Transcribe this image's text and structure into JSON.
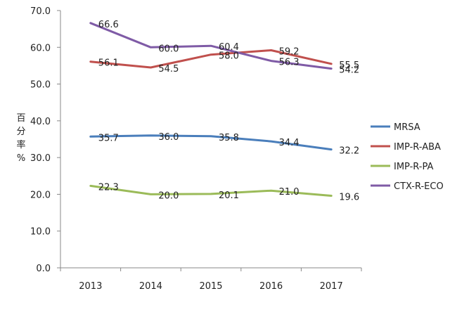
{
  "chart_data": {
    "type": "line",
    "ylabel": [
      "百",
      "分",
      "率",
      "%"
    ],
    "categories": [
      "2013",
      "2014",
      "2015",
      "2016",
      "2017"
    ],
    "ylim": [
      0,
      70
    ],
    "yticks": [
      "0.0",
      "10.0",
      "20.0",
      "30.0",
      "40.0",
      "50.0",
      "60.0",
      "70.0"
    ],
    "grid": false,
    "legend_position": "right",
    "series": [
      {
        "name": "MRSA",
        "color": "#4a7ebb",
        "values": [
          35.7,
          36.0,
          35.8,
          34.4,
          32.2
        ],
        "labels": [
          "35.7",
          "36.0",
          "35.8",
          "34.4",
          "32.2"
        ]
      },
      {
        "name": "IMP-R-ABA",
        "color": "#c0504d",
        "values": [
          56.1,
          54.5,
          58.0,
          59.2,
          55.5
        ],
        "labels": [
          "56.1",
          "54.5",
          "58.0",
          "59.2",
          "55.5"
        ]
      },
      {
        "name": "IMP-R-PA",
        "color": "#9bbb59",
        "values": [
          22.3,
          20.0,
          20.1,
          21.0,
          19.6
        ],
        "labels": [
          "22.3",
          "20.0",
          "20.1",
          "21.0",
          "19.6"
        ]
      },
      {
        "name": "CTX-R-ECO",
        "color": "#7f5ba6",
        "values": [
          66.6,
          60.0,
          60.4,
          56.3,
          54.2
        ],
        "labels": [
          "66.6",
          "60.0",
          "60.4",
          "56.3",
          "54.2"
        ]
      }
    ]
  }
}
